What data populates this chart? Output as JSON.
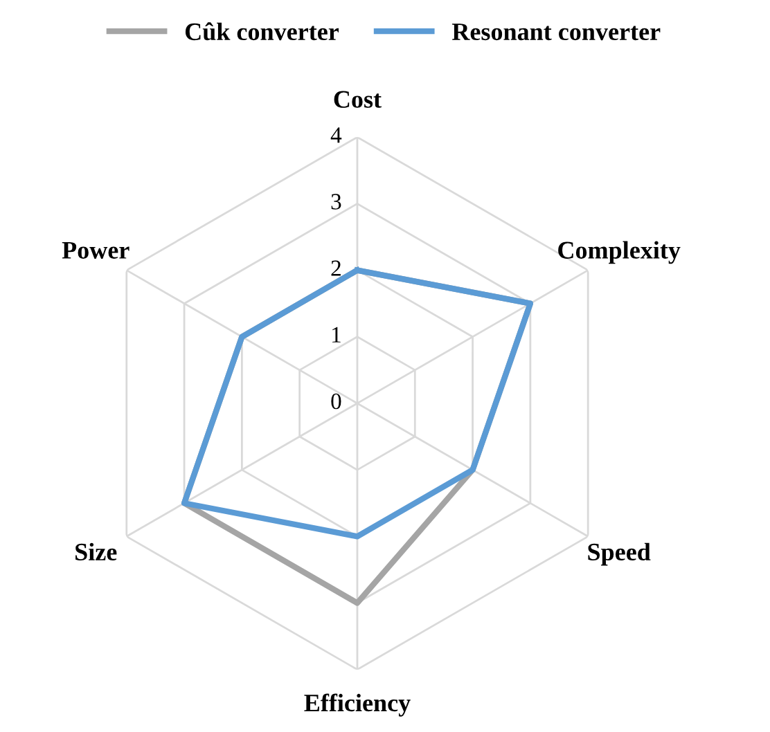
{
  "chart_data": {
    "type": "radar",
    "categories": [
      "Cost",
      "Complexity",
      "Speed",
      "Efficiency",
      "Size",
      "Power"
    ],
    "series": [
      {
        "name": "Cûk converter",
        "color": "#a5a5a5",
        "values": [
          2,
          3,
          2,
          3,
          3,
          2
        ]
      },
      {
        "name": "Resonant converter",
        "color": "#5b9bd5",
        "values": [
          2,
          3,
          2,
          2,
          3,
          2
        ]
      }
    ],
    "ylim": [
      0,
      4
    ],
    "yticks": [
      0,
      1,
      2,
      3,
      4
    ],
    "grid": true,
    "legend": "top",
    "marker": "none",
    "line_style": "solid"
  }
}
